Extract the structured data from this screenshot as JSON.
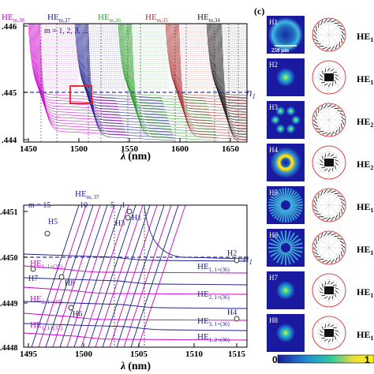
{
  "top_chart": {
    "ytick_labels": [
      ".446",
      ".445",
      ".444"
    ],
    "xtick_labels": [
      "1450",
      "1500",
      "1550",
      "1600",
      "1650"
    ],
    "xlabel_symbol": "λ",
    "xlabel_unit": "(nm)",
    "ref_label": "n",
    "ref_sub": "1",
    "m_label": "m = 1, 2, 3, ...",
    "family_labels": [
      {
        "base": "HE",
        "sub": "m,38",
        "color": "#cc00cc"
      },
      {
        "base": "HE",
        "sub": "m,37",
        "color": "#1a1a8c"
      },
      {
        "base": "HE",
        "sub": "m,36",
        "color": "#2ca02c"
      },
      {
        "base": "HE",
        "sub": "m,35",
        "color": "#b03030"
      },
      {
        "base": "HE",
        "sub": "m,34",
        "color": "#222222"
      }
    ],
    "colors": {
      "magenta": "#cc00cc",
      "blue": "#1a1a8c",
      "green": "#2ca02c",
      "red": "#b03030",
      "black": "#222222",
      "box": "#e02020",
      "ref_line": "#333399"
    }
  },
  "bottom_chart": {
    "ytick_labels": [
      ".4451",
      ".4450",
      ".4449",
      ".4448"
    ],
    "xtick_labels": [
      "1495",
      "1500",
      "1505",
      "1510",
      "1515"
    ],
    "xlabel_symbol": "λ",
    "xlabel_unit": "(nm)",
    "family_label": {
      "base": "HE",
      "sub": "m, 37"
    },
    "m_numbers": [
      "m = 15",
      "10",
      "5",
      "1"
    ],
    "ref_label": "n",
    "ref_sub": "1",
    "points": [
      "H1",
      "H2",
      "H3",
      "H4",
      "H5",
      "H6",
      "H7",
      "H8"
    ],
    "mode_labels": [
      {
        "base": "HE",
        "sub": "1, 1+(36)",
        "color": "#1a1a8c"
      },
      {
        "base": "HE",
        "sub": "2, 1+(36)",
        "color": "#1a1a8c"
      },
      {
        "base": "HE",
        "sub": "3, 1+(36)",
        "color": "#1a1a8c"
      },
      {
        "base": "HE",
        "sub": "1, 2+(36)",
        "color": "#1a1a8c"
      },
      {
        "base": "HE",
        "sub": "1, 1+(37)",
        "color": "#cc00cc"
      },
      {
        "base": "HE",
        "sub": "2, 1+(37)",
        "color": "#cc00cc"
      },
      {
        "base": "HE",
        "sub": "1, 1+(37)",
        "color": "#cc00cc"
      }
    ]
  },
  "panel_c": {
    "label": "(c)",
    "tiles": [
      "H1",
      "H2",
      "H3",
      "H4",
      "H5",
      "H6",
      "H7",
      "H8"
    ],
    "scale_bar": "250 μm",
    "right_labels": [
      "HE",
      "HE",
      "HE",
      "HE",
      "HE",
      "HE",
      "HE",
      "HE"
    ],
    "right_subs": [
      "1",
      "1",
      "2",
      "2",
      "1",
      "1",
      "1",
      "1"
    ],
    "colorbar_min": "0",
    "colorbar_max": "1"
  }
}
